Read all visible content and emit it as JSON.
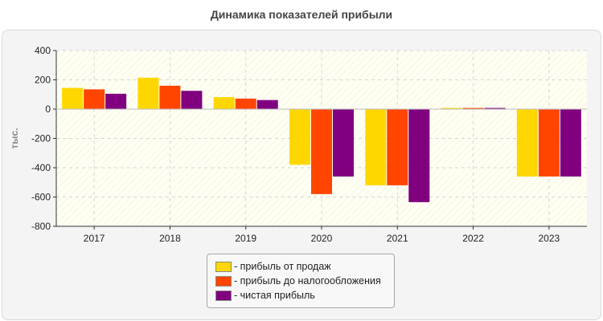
{
  "chart_data": {
    "type": "bar",
    "title": "Динамика показателей прибыли",
    "ylabel": "тыс.",
    "xlabel": "",
    "ylim": [
      -800,
      400
    ],
    "yticks": [
      400,
      200,
      0,
      -200,
      -400,
      -600,
      -800
    ],
    "grid": true,
    "legend_position": "bottom-center",
    "categories": [
      "2017",
      "2018",
      "2019",
      "2020",
      "2021",
      "2022",
      "2023"
    ],
    "series": [
      {
        "name": "- прибыль от продаж",
        "color": "#FFD700",
        "values": [
          145,
          215,
          82,
          -380,
          -520,
          8,
          -460
        ]
      },
      {
        "name": "- прибыль до налогообложения",
        "color": "#FF4500",
        "values": [
          135,
          160,
          72,
          -580,
          -520,
          8,
          -460
        ]
      },
      {
        "name": "- чистая прибыль",
        "color": "#800080",
        "values": [
          105,
          125,
          62,
          -460,
          -635,
          8,
          -460
        ]
      }
    ]
  }
}
